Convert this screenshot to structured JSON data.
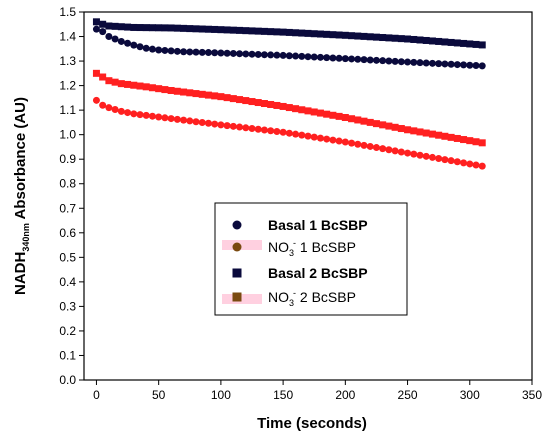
{
  "chart_data": {
    "type": "scatter",
    "title": "",
    "xlabel": "Time (seconds)",
    "ylabel": {
      "main": "NADH",
      "subscript": "340nm",
      "rest": " Absorbance (AU)"
    },
    "xlim": [
      -10,
      350
    ],
    "ylim": [
      0.0,
      1.5
    ],
    "xticks": [
      0,
      50,
      100,
      150,
      200,
      250,
      300,
      350
    ],
    "yticks": [
      "0.0",
      "0.1",
      "0.2",
      "0.3",
      "0.4",
      "0.5",
      "0.6",
      "0.7",
      "0.8",
      "0.9",
      "1.0",
      "1.1",
      "1.2",
      "1.3",
      "1.4",
      "1.5"
    ],
    "legend_position": "center",
    "colors": {
      "navy": "#0a0a3c",
      "red": "#ff2020",
      "brown": "#7a4a10",
      "highlight": "#ffd0e0"
    },
    "series": [
      {
        "name": "Basal 1 BcSBP",
        "marker": "circle",
        "color": "#0a0a3c",
        "x_start": 0,
        "x_step": 5,
        "count": 63,
        "points": [
          [
            0,
            1.43
          ],
          [
            5,
            1.42
          ],
          [
            10,
            1.4
          ],
          [
            20,
            1.38
          ],
          [
            30,
            1.365
          ],
          [
            40,
            1.352
          ],
          [
            50,
            1.345
          ],
          [
            70,
            1.338
          ],
          [
            100,
            1.333
          ],
          [
            150,
            1.323
          ],
          [
            200,
            1.31
          ],
          [
            250,
            1.296
          ],
          [
            312,
            1.28
          ]
        ]
      },
      {
        "name": "NO3- 1 BcSBP",
        "label_parts": [
          "NO",
          "3",
          "-",
          " 1 BcSBP"
        ],
        "marker": "circle",
        "color": "#ff2020",
        "legend_color": "#7a4a10",
        "x_start": 0,
        "x_step": 5,
        "count": 63,
        "points": [
          [
            0,
            1.14
          ],
          [
            5,
            1.12
          ],
          [
            10,
            1.11
          ],
          [
            20,
            1.095
          ],
          [
            30,
            1.085
          ],
          [
            50,
            1.072
          ],
          [
            100,
            1.04
          ],
          [
            150,
            1.01
          ],
          [
            200,
            0.97
          ],
          [
            250,
            0.925
          ],
          [
            312,
            0.87
          ]
        ]
      },
      {
        "name": "Basal 2 BcSBP",
        "marker": "square",
        "color": "#0a0a3c",
        "x_start": 0,
        "x_step": 5,
        "count": 63,
        "points": [
          [
            0,
            1.46
          ],
          [
            5,
            1.45
          ],
          [
            10,
            1.443
          ],
          [
            30,
            1.437
          ],
          [
            60,
            1.435
          ],
          [
            100,
            1.428
          ],
          [
            150,
            1.418
          ],
          [
            200,
            1.405
          ],
          [
            250,
            1.39
          ],
          [
            312,
            1.365
          ]
        ]
      },
      {
        "name": "NO3- 2 BcSBP",
        "label_parts": [
          "NO",
          "3",
          "-",
          " 2 BcSBP"
        ],
        "marker": "square",
        "color": "#ff2020",
        "legend_color": "#7a4a10",
        "x_start": 0,
        "x_step": 5,
        "count": 63,
        "points": [
          [
            0,
            1.25
          ],
          [
            5,
            1.235
          ],
          [
            10,
            1.22
          ],
          [
            20,
            1.208
          ],
          [
            40,
            1.195
          ],
          [
            60,
            1.18
          ],
          [
            100,
            1.155
          ],
          [
            150,
            1.115
          ],
          [
            200,
            1.07
          ],
          [
            250,
            1.02
          ],
          [
            312,
            0.965
          ]
        ]
      }
    ]
  }
}
